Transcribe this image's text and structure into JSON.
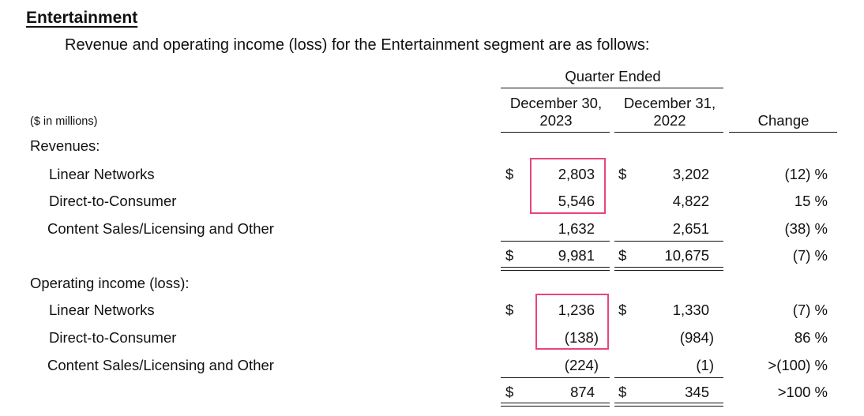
{
  "section_title": "Entertainment",
  "intro": "Revenue and operating income (loss) for the Entertainment segment are as follows:",
  "units_label": "($ in millions)",
  "period_header": "Quarter Ended",
  "columns": {
    "current": "December 30,\n2023",
    "prior": "December 31,\n2022",
    "change": "Change"
  },
  "currency_symbol": "$",
  "revenues": {
    "label": "Revenues:",
    "rows": [
      {
        "label": "Linear Networks",
        "current": "2,803",
        "prior": "3,202",
        "change": "(12) %"
      },
      {
        "label": "Direct-to-Consumer",
        "current": "5,546",
        "prior": "4,822",
        "change": "15 %"
      },
      {
        "label": "Content Sales/Licensing and Other",
        "current": "1,632",
        "prior": "2,651",
        "change": "(38) %"
      }
    ],
    "total": {
      "current": "9,981",
      "prior": "10,675",
      "change": "(7) %"
    }
  },
  "operating_income": {
    "label": "Operating income (loss):",
    "rows": [
      {
        "label": "Linear Networks",
        "current": "1,236",
        "prior": "1,330",
        "change": "(7) %"
      },
      {
        "label": "Direct-to-Consumer",
        "current": "(138)",
        "prior": "(984)",
        "change": "86 %"
      },
      {
        "label": "Content Sales/Licensing and Other",
        "current": "(224)",
        "prior": "(1)",
        "change": ">(100) %"
      }
    ],
    "total": {
      "current": "874",
      "prior": "345",
      "change": ">100 %"
    }
  },
  "highlight_color": "#e8467a"
}
